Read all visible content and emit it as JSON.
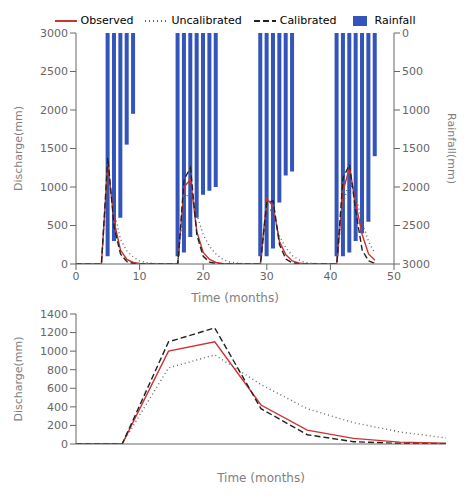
{
  "chart_data": [
    {
      "type": "line",
      "xlabel": "Time (months)",
      "ylabel": "Discharge(mm)",
      "y2label": "Rainfall(mm)",
      "x": [
        0,
        1,
        2,
        3,
        4,
        5,
        6,
        7,
        8,
        9,
        10,
        11,
        12,
        13,
        14,
        15,
        16,
        17,
        18,
        19,
        20,
        21,
        22,
        23,
        24,
        25,
        26,
        27,
        28,
        29,
        30,
        31,
        32,
        33,
        34,
        35,
        36,
        37,
        38,
        39,
        40,
        41,
        42,
        43,
        44,
        45,
        46,
        47
      ],
      "series": [
        {
          "name": "Observed",
          "color": "#cc3333",
          "line_style": "solid",
          "values": [
            2,
            2,
            2,
            2,
            2,
            1300,
            550,
            180,
            60,
            20,
            8,
            3,
            2,
            2,
            2,
            2,
            2,
            1000,
            1100,
            420,
            150,
            60,
            20,
            8,
            3,
            2,
            2,
            2,
            2,
            2,
            850,
            750,
            290,
            120,
            40,
            15,
            5,
            2,
            2,
            2,
            2,
            2,
            950,
            1250,
            780,
            380,
            130,
            50
          ]
        },
        {
          "name": "Uncalibrated",
          "color": "#666666",
          "line_style": "dotted",
          "values": [
            2,
            2,
            2,
            2,
            2,
            1150,
            680,
            320,
            170,
            90,
            40,
            18,
            8,
            4,
            2,
            2,
            2,
            820,
            960,
            640,
            380,
            230,
            130,
            65,
            30,
            14,
            6,
            3,
            2,
            2,
            730,
            680,
            360,
            210,
            110,
            55,
            22,
            9,
            4,
            2,
            2,
            2,
            780,
            1080,
            870,
            540,
            290,
            140
          ]
        },
        {
          "name": "Calibrated",
          "color": "#222222",
          "line_style": "dashed",
          "values": [
            1,
            1,
            1,
            1,
            1,
            1380,
            480,
            130,
            30,
            7,
            2,
            1,
            1,
            1,
            1,
            1,
            1,
            1100,
            1250,
            380,
            100,
            25,
            6,
            2,
            1,
            1,
            1,
            1,
            1,
            1,
            800,
            820,
            250,
            65,
            15,
            4,
            1,
            1,
            1,
            1,
            1,
            1,
            1120,
            1290,
            680,
            180,
            40,
            8
          ]
        },
        {
          "name": "Rainfall",
          "type": "bar",
          "axis": "y2",
          "color": "#3355bb",
          "values": [
            null,
            null,
            null,
            null,
            null,
            2900,
            2700,
            2400,
            1450,
            1050,
            null,
            null,
            null,
            null,
            null,
            null,
            2900,
            2850,
            2650,
            2400,
            2100,
            2050,
            2000,
            null,
            null,
            null,
            null,
            null,
            null,
            2900,
            2900,
            2800,
            2200,
            1850,
            1800,
            null,
            null,
            null,
            null,
            null,
            null,
            2900,
            2900,
            2850,
            2700,
            2600,
            2450,
            1600
          ]
        }
      ],
      "xlim": [
        0,
        50
      ],
      "xticks": [
        0,
        10,
        20,
        30,
        40,
        50
      ],
      "ylim": [
        0,
        3000
      ],
      "yticks": [
        0,
        500,
        1000,
        1500,
        2000,
        2500,
        3000
      ],
      "y2lim": [
        3000,
        0
      ],
      "y2ticks": [
        0,
        500,
        1000,
        1500,
        2000,
        2500,
        3000
      ],
      "grid": false,
      "legend": "top"
    },
    {
      "type": "line",
      "xlabel": "Time (months)",
      "ylabel": "Discharge(mm)",
      "x": [
        15,
        16,
        17,
        18,
        19,
        20,
        21,
        22,
        23
      ],
      "series": [
        {
          "name": "Observed",
          "color": "#cc3333",
          "line_style": "solid",
          "values": [
            2,
            2,
            1000,
            1100,
            420,
            150,
            60,
            20,
            8
          ]
        },
        {
          "name": "Uncalibrated",
          "color": "#666666",
          "line_style": "dotted",
          "values": [
            2,
            2,
            820,
            960,
            640,
            380,
            230,
            130,
            65
          ]
        },
        {
          "name": "Calibrated",
          "color": "#222222",
          "line_style": "dashed",
          "values": [
            1,
            1,
            1100,
            1250,
            380,
            100,
            25,
            6,
            2
          ]
        }
      ],
      "xlim": [
        15,
        23
      ],
      "ylim": [
        0,
        1400
      ],
      "yticks": [
        0,
        200,
        400,
        600,
        800,
        1000,
        1200,
        1400
      ],
      "grid": false,
      "tick_labels": "y"
    }
  ]
}
